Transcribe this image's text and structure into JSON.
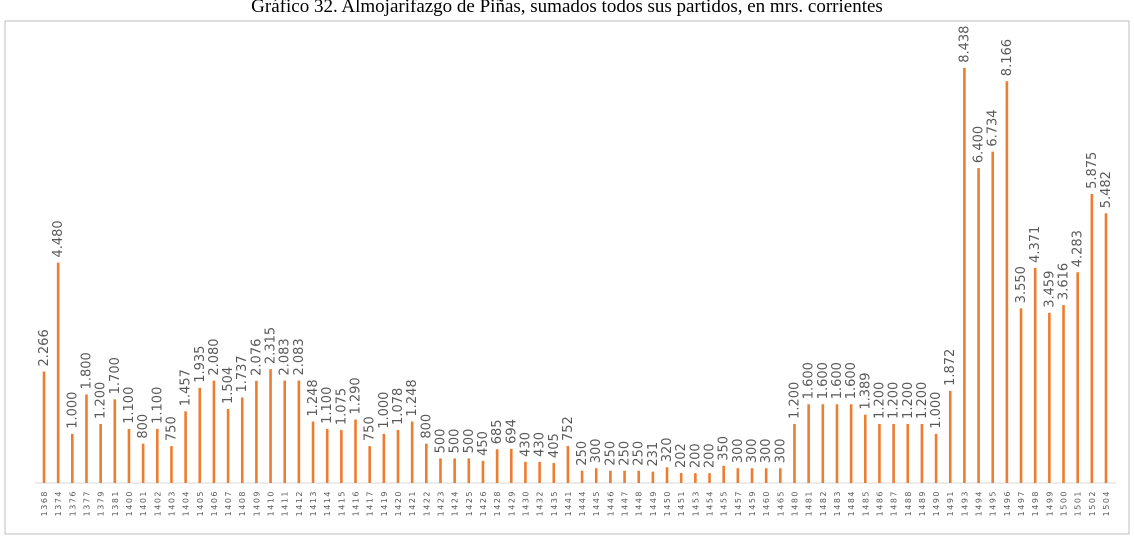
{
  "chart_data": {
    "type": "bar",
    "title": "Gráfico 32. Almojarifazgo de Piñas, sumados todos sus partidos, en mrs. corrientes",
    "xlabel": "",
    "ylabel": "",
    "ylim": [
      0,
      8800
    ],
    "grid": false,
    "legend": "none",
    "bar_color": "#ED7D31",
    "categories": [
      "1368",
      "1374",
      "1376",
      "1377",
      "1379",
      "1381",
      "1400",
      "1401",
      "1402",
      "1403",
      "1404",
      "1405",
      "1406",
      "1407",
      "1408",
      "1409",
      "1410",
      "1411",
      "1412",
      "1413",
      "1414",
      "1415",
      "1416",
      "1417",
      "1419",
      "1420",
      "1421",
      "1422",
      "1423",
      "1424",
      "1425",
      "1426",
      "1428",
      "1429",
      "1430",
      "1432",
      "1435",
      "1441",
      "1444",
      "1445",
      "1446",
      "1447",
      "1448",
      "1449",
      "1450",
      "1451",
      "1453",
      "1454",
      "1455",
      "1457",
      "1459",
      "1460",
      "1465",
      "1480",
      "1481",
      "1482",
      "1483",
      "1484",
      "1485",
      "1486",
      "1487",
      "1488",
      "1489",
      "1490",
      "1491",
      "1493",
      "1494",
      "1495",
      "1496",
      "1497",
      "1498",
      "1499",
      "1500",
      "1501",
      "1502",
      "1504"
    ],
    "values": [
      2266,
      4480,
      1000,
      1800,
      1200,
      1700,
      1100,
      800,
      1100,
      750,
      1457,
      1935,
      2080,
      1504,
      1737,
      2076,
      2315,
      2083,
      2083,
      1248,
      1100,
      1075,
      1290,
      750,
      1000,
      1078,
      1248,
      800,
      500,
      500,
      500,
      450,
      685,
      694,
      430,
      430,
      405,
      752,
      250,
      300,
      250,
      250,
      250,
      231,
      320,
      202,
      200,
      200,
      350,
      300,
      300,
      300,
      300,
      1200,
      1600,
      1600,
      1600,
      1600,
      1389,
      1200,
      1200,
      1200,
      1200,
      1000,
      1872,
      8438,
      6400,
      6734,
      8166,
      3550,
      4371,
      3459,
      3616,
      4283,
      5875,
      5482
    ],
    "labels": [
      "2.266",
      "4.480",
      "1.000",
      "1.800",
      "1.200",
      "1.700",
      "1.100",
      "800",
      "1.100",
      "750",
      "1.457",
      "1.935",
      "2.080",
      "1.504",
      "1.737",
      "2.076",
      "2.315",
      "2.083",
      "2.083",
      "1.248",
      "1.100",
      "1.075",
      "1.290",
      "750",
      "1.000",
      "1.078",
      "1.248",
      "800",
      "500",
      "500",
      "500",
      "450",
      "685",
      "694",
      "430",
      "430",
      "405",
      "752",
      "250",
      "300",
      "250",
      "250",
      "250",
      "231",
      "320",
      "202",
      "200",
      "200",
      "350",
      "300",
      "300",
      "300",
      "300",
      "1.200",
      "1.600",
      "1.600",
      "1.600",
      "1.600",
      "1.389",
      "1.200",
      "1.200",
      "1.200",
      "1.200",
      "1.000",
      "1.872",
      "8.438",
      "6.400",
      "6.734",
      "8.166",
      "3.550",
      "4.371",
      "3.459",
      "3.616",
      "4.283",
      "5.875",
      "5.482"
    ]
  }
}
